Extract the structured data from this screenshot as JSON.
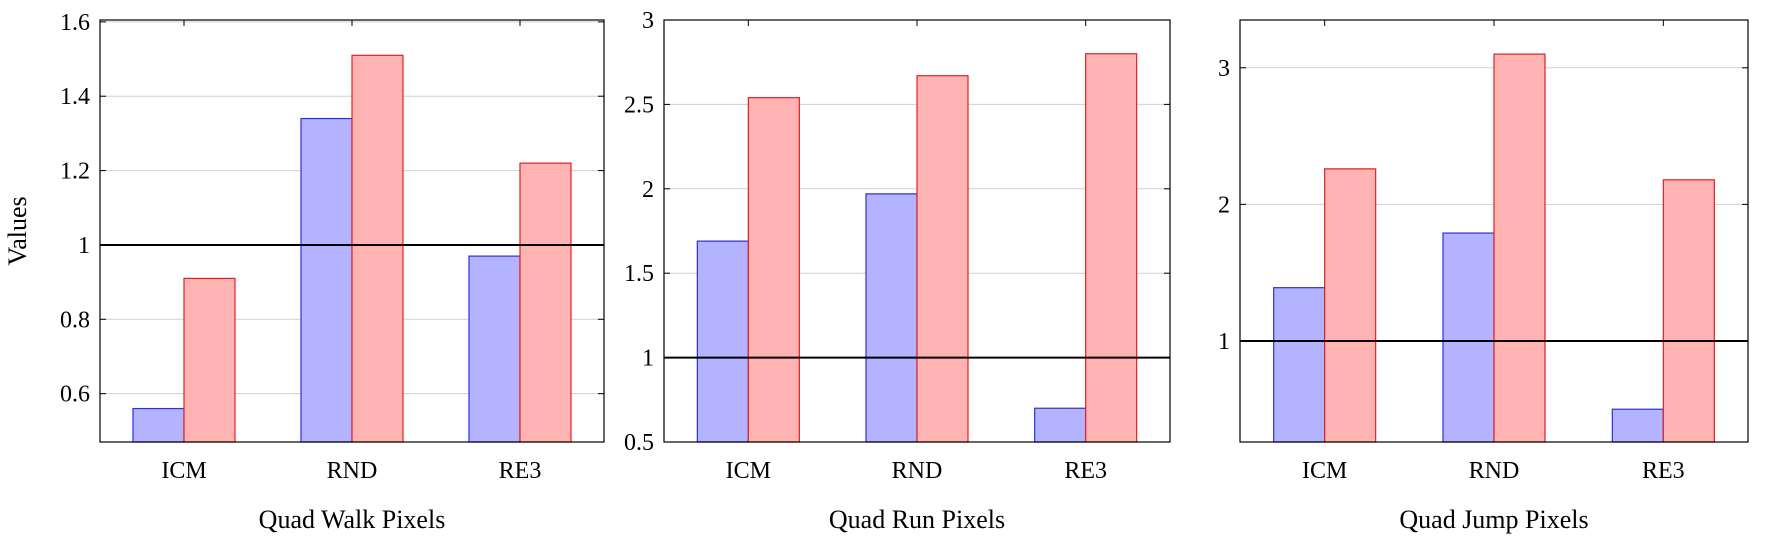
{
  "colors": {
    "series_a_fill": "#b3b3ff",
    "series_a_stroke": "#3030d8",
    "series_b_fill": "#ffb3b3",
    "series_b_stroke": "#e02020",
    "reference_line": "#000000",
    "grid": "#d0d0d0"
  },
  "chart_data": [
    {
      "type": "bar",
      "title": "",
      "xlabel": "Quad Walk Pixels",
      "ylabel": "Values",
      "categories": [
        "ICM",
        "RND",
        "RE3"
      ],
      "series": [
        {
          "values": [
            0.56,
            1.34,
            0.97
          ]
        },
        {
          "values": [
            0.91,
            1.51,
            1.22
          ]
        }
      ],
      "ylim": [
        0.47,
        1.605
      ],
      "yticks": [
        0.6,
        0.8,
        1.0,
        1.2,
        1.4,
        1.6
      ],
      "ytick_labels": [
        "0.6",
        "0.8",
        "1",
        "1.2",
        "1.4",
        "1.6"
      ],
      "reference_line": 1.0,
      "grid": true
    },
    {
      "type": "bar",
      "title": "",
      "xlabel": "Quad Run Pixels",
      "ylabel": "",
      "categories": [
        "ICM",
        "RND",
        "RE3"
      ],
      "series": [
        {
          "values": [
            1.69,
            1.97,
            0.7
          ]
        },
        {
          "values": [
            2.54,
            2.67,
            2.8
          ]
        }
      ],
      "ylim": [
        0.5,
        3.0
      ],
      "yticks": [
        0.5,
        1.0,
        1.5,
        2.0,
        2.5,
        3.0
      ],
      "ytick_labels": [
        "0.5",
        "1",
        "1.5",
        "2",
        "2.5",
        "3"
      ],
      "reference_line": 1.0,
      "grid": true
    },
    {
      "type": "bar",
      "title": "",
      "xlabel": "Quad Jump Pixels",
      "ylabel": "",
      "categories": [
        "ICM",
        "RND",
        "RE3"
      ],
      "series": [
        {
          "values": [
            1.39,
            1.79,
            0.5
          ]
        },
        {
          "values": [
            2.26,
            3.1,
            2.18
          ]
        }
      ],
      "ylim": [
        0.26,
        3.35
      ],
      "yticks": [
        1,
        2,
        3
      ],
      "ytick_labels": [
        "1",
        "2",
        "3"
      ],
      "reference_line": 1.0,
      "grid": true
    }
  ]
}
